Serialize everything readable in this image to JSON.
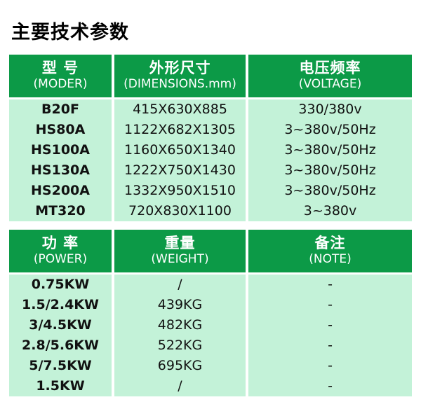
{
  "page_title": "主要技术参数",
  "colors": {
    "header_bg": "#0c9a47",
    "header_text": "#ffffff",
    "body_bg": "#c3f2d8",
    "body_text": "#111111"
  },
  "tables": [
    {
      "headers": [
        {
          "zh": "型 号",
          "en": "(MODER)"
        },
        {
          "zh": "外形尺寸",
          "en": "(DIMENSIONS.mm)"
        },
        {
          "zh": "电压频率",
          "en": "(VOLTAGE)"
        }
      ],
      "rows": [
        [
          "B20F",
          "415X630X885",
          "330/380v"
        ],
        [
          "HS80A",
          "1122X682X1305",
          "3~380v/50Hz"
        ],
        [
          "HS100A",
          "1160X650X1340",
          "3~380v/50Hz"
        ],
        [
          "HS130A",
          "1222X750X1430",
          "3~380v/50Hz"
        ],
        [
          "HS200A",
          "1332X950X1510",
          "3~380v/50Hz"
        ],
        [
          "MT320",
          "720X830X1100",
          "3~380v"
        ]
      ]
    },
    {
      "headers": [
        {
          "zh": "功 率",
          "en": "(POWER)"
        },
        {
          "zh": "重量",
          "en": "(WEIGHT)"
        },
        {
          "zh": "备注",
          "en": "(NOTE)"
        }
      ],
      "rows": [
        [
          "0.75KW",
          "/",
          "-"
        ],
        [
          "1.5/2.4KW",
          "439KG",
          "-"
        ],
        [
          "3/4.5KW",
          "482KG",
          "-"
        ],
        [
          "2.8/5.6KW",
          "522KG",
          "-"
        ],
        [
          "5/7.5KW",
          "695KG",
          "-"
        ],
        [
          "1.5KW",
          "/",
          "-"
        ]
      ]
    }
  ]
}
